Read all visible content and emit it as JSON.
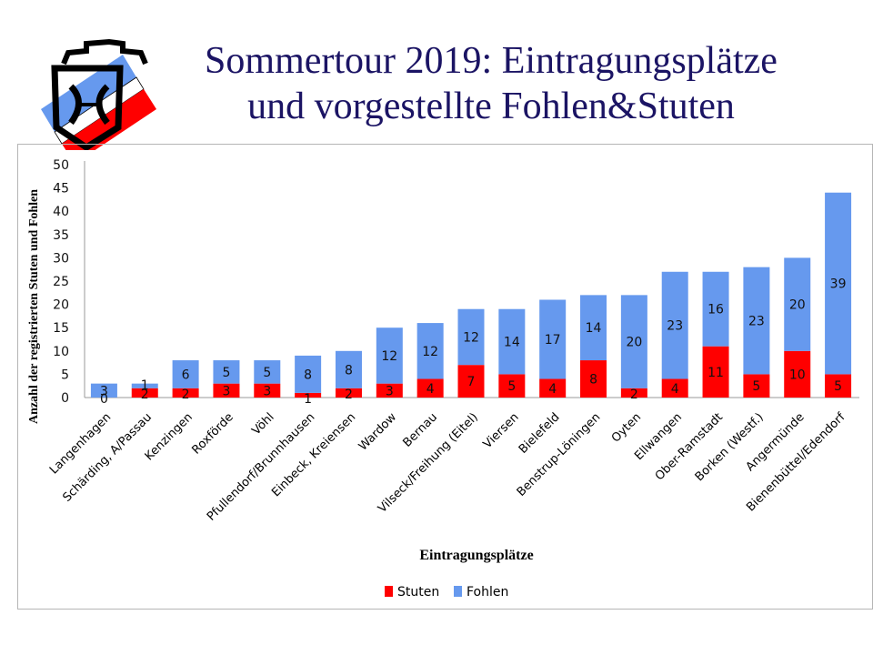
{
  "slide": {
    "title_line1": "Sommertour 2019: Eintragungsplätze",
    "title_line2": "und vorgestellte Fohlen&Stuten",
    "logo_icon": "shield-logo-icon"
  },
  "colors": {
    "stuten": "#ff0000",
    "fohlen": "#6699ee",
    "title": "#1b1464"
  },
  "chart_data": {
    "type": "bar",
    "stacked": true,
    "title": "",
    "xlabel": "Eintragungsplätze",
    "ylabel": "Anzahl der registrierten Stuten und Fohlen",
    "ylim": [
      0,
      50
    ],
    "yticks": [
      0,
      5,
      10,
      15,
      20,
      25,
      30,
      35,
      40,
      45,
      50
    ],
    "grid": false,
    "legend_position": "bottom",
    "categories": [
      "Langenhagen",
      "Schärding, A/Passau",
      "Kenzingen",
      "Roxförde",
      "Vöhl",
      "Pfullendorf/Brunnhausen",
      "Einbeck, Kreiensen",
      "Wardow",
      "Bernau",
      "Vilseck/Freihung (Eitel)",
      "Viersen",
      "Bielefeld",
      "Benstrup-Löningen",
      "Oyten",
      "Ellwangen",
      "Ober-Ramstadt",
      "Borken (Westf.)",
      "Angermünde",
      "Bienenbüttel/Edendorf"
    ],
    "series": [
      {
        "name": "Stuten",
        "color": "#ff0000",
        "values": [
          0,
          2,
          2,
          3,
          3,
          1,
          2,
          3,
          4,
          7,
          5,
          4,
          8,
          2,
          4,
          11,
          5,
          10,
          5
        ]
      },
      {
        "name": "Fohlen",
        "color": "#6699ee",
        "values": [
          3,
          1,
          6,
          5,
          5,
          8,
          8,
          12,
          12,
          12,
          14,
          17,
          14,
          20,
          23,
          16,
          23,
          20,
          39
        ]
      }
    ]
  }
}
